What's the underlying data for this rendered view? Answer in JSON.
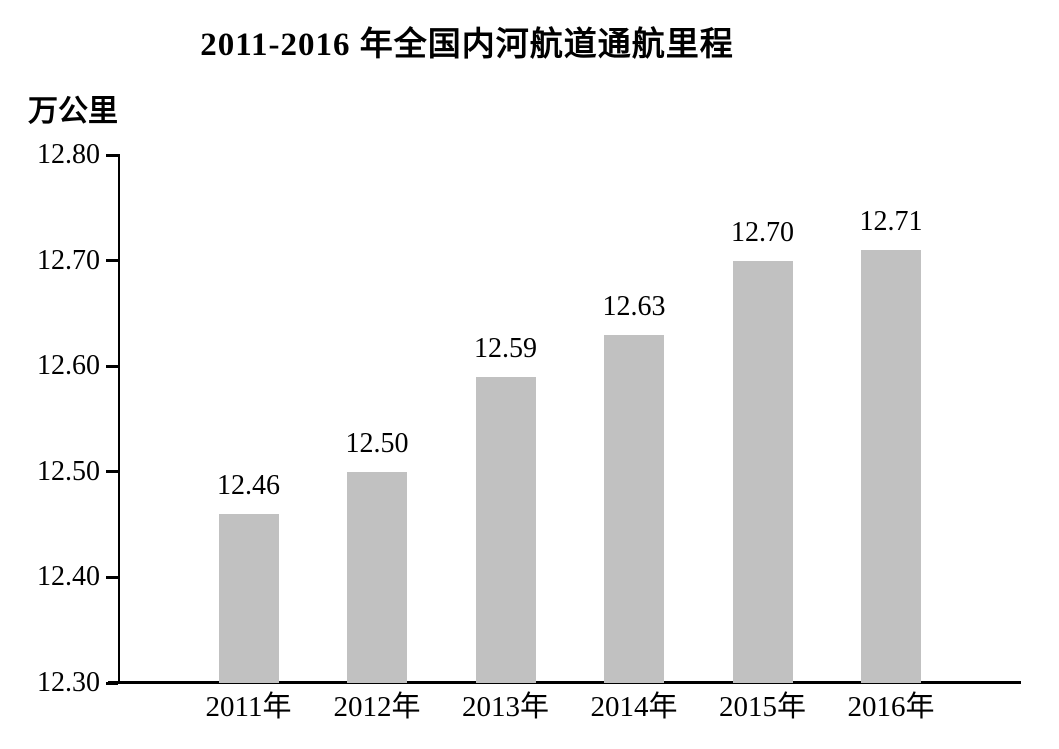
{
  "chart_data": {
    "type": "bar",
    "title": "2011-2016 年全国内河航道通航里程",
    "unit_label": "万公里",
    "xlabel": "",
    "ylabel": "万公里",
    "categories": [
      "2011年",
      "2012年",
      "2013年",
      "2014年",
      "2015年",
      "2016年"
    ],
    "values": [
      12.46,
      12.5,
      12.59,
      12.63,
      12.7,
      12.71
    ],
    "value_labels": [
      "12.46",
      "12.50",
      "12.59",
      "12.63",
      "12.70",
      "12.71"
    ],
    "ylim": [
      12.3,
      12.8
    ],
    "y_ticks": [
      "12.80",
      "12.70",
      "12.60",
      "12.50",
      "12.40",
      "12.30"
    ],
    "grid": false,
    "legend": "none",
    "colors": {
      "bar_fill": "#c1c1c1",
      "axis": "#000000",
      "text": "#000000",
      "background": "#ffffff"
    }
  }
}
